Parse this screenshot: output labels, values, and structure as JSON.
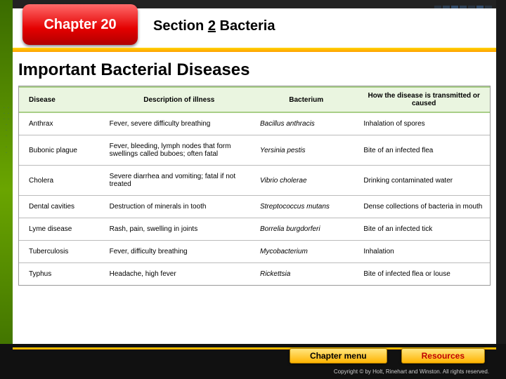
{
  "chapter_label": "Chapter 20",
  "section_prefix": "Section",
  "section_num": "2",
  "section_topic": "Bacteria",
  "slide_title": "Important Bacterial Diseases",
  "table": {
    "columns": [
      "Disease",
      "Description of illness",
      "Bacterium",
      "How the disease is transmitted or caused"
    ],
    "col_widths": [
      "18%",
      "32%",
      "22%",
      "28%"
    ],
    "rows": [
      [
        "Anthrax",
        "Fever, severe difficulty breathing",
        "Bacillus anthracis",
        "Inhalation of spores"
      ],
      [
        "Bubonic plague",
        "Fever, bleeding, lymph nodes that form swellings called buboes; often fatal",
        "Yersinia pestis",
        "Bite of an infected flea"
      ],
      [
        "Cholera",
        "Severe diarrhea and vomiting; fatal if not treated",
        "Vibrio cholerae",
        "Drinking contaminated water"
      ],
      [
        "Dental cavities",
        "Destruction of minerals in tooth",
        "Streptococcus mutans",
        "Dense collections of bacteria in mouth"
      ],
      [
        "Lyme disease",
        "Rash, pain, swelling in joints",
        "Borrelia burgdorferi",
        "Bite of an infected tick"
      ],
      [
        "Tuberculosis",
        "Fever, difficulty breathing",
        "Mycobacterium",
        "Inhalation"
      ],
      [
        "Typhus",
        "Headache, high fever",
        "Rickettsia",
        "Bite of infected flea or louse"
      ]
    ]
  },
  "buttons": {
    "chapter_menu": "Chapter menu",
    "resources": "Resources"
  },
  "copyright": "Copyright © by Holt, Rinehart and Winston. All rights reserved.",
  "colors": {
    "green_frame": "#6aa500",
    "red_box": "#e40000",
    "yellow_accent": "#ffb300",
    "table_header_bg": "#eaf5e0",
    "table_header_border": "#a9cf87"
  }
}
